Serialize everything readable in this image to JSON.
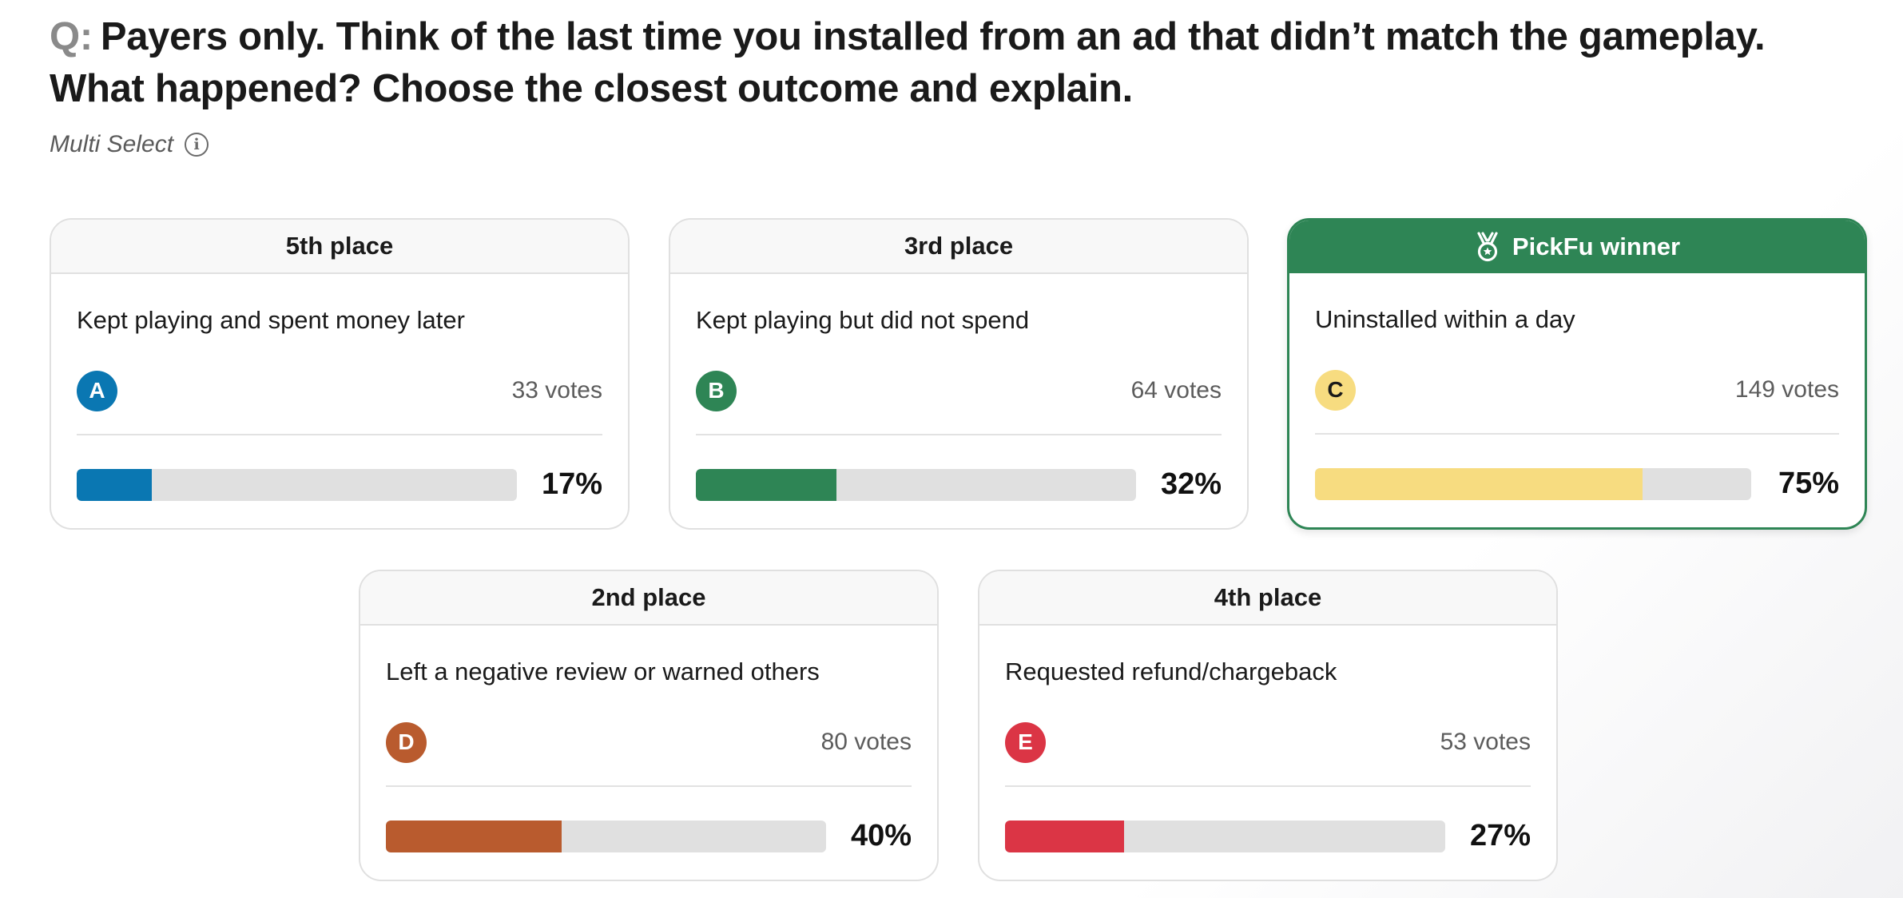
{
  "question": {
    "prefix": "Q:",
    "text": "Payers only. Think of the last time you installed from an ad that didn’t match the gameplay. What happened? Choose the closest outcome and explain.",
    "type_label": "Multi Select",
    "info_icon": "info-icon"
  },
  "options": [
    {
      "place": "5th place",
      "text": "Kept playing and spent money later",
      "letter": "A",
      "votes": "33 votes",
      "percent": "17%",
      "fraction": 0.17,
      "color": "#0a77b2",
      "letter_color": "#ffffff",
      "winner": false
    },
    {
      "place": "3rd place",
      "text": "Kept playing but did not spend",
      "letter": "B",
      "votes": "64 votes",
      "percent": "32%",
      "fraction": 0.32,
      "color": "#2e8555",
      "letter_color": "#ffffff",
      "winner": false
    },
    {
      "place": "PickFu winner",
      "text": "Uninstalled within a day",
      "letter": "C",
      "votes": "149 votes",
      "percent": "75%",
      "fraction": 0.75,
      "color": "#f7dc80",
      "letter_color": "#1a1a1a",
      "winner": true,
      "icon": "medal-icon"
    },
    {
      "place": "2nd place",
      "text": "Left a negative review or warned others",
      "letter": "D",
      "votes": "80 votes",
      "percent": "40%",
      "fraction": 0.4,
      "color": "#b95b2e",
      "letter_color": "#ffffff",
      "winner": false
    },
    {
      "place": "4th place",
      "text": "Requested refund/chargeback",
      "letter": "E",
      "votes": "53 votes",
      "percent": "27%",
      "fraction": 0.27,
      "color": "#db3545",
      "letter_color": "#ffffff",
      "winner": false
    }
  ],
  "colors": {
    "winner_green": "#2e8555",
    "track_gray": "#e0e0e0"
  }
}
